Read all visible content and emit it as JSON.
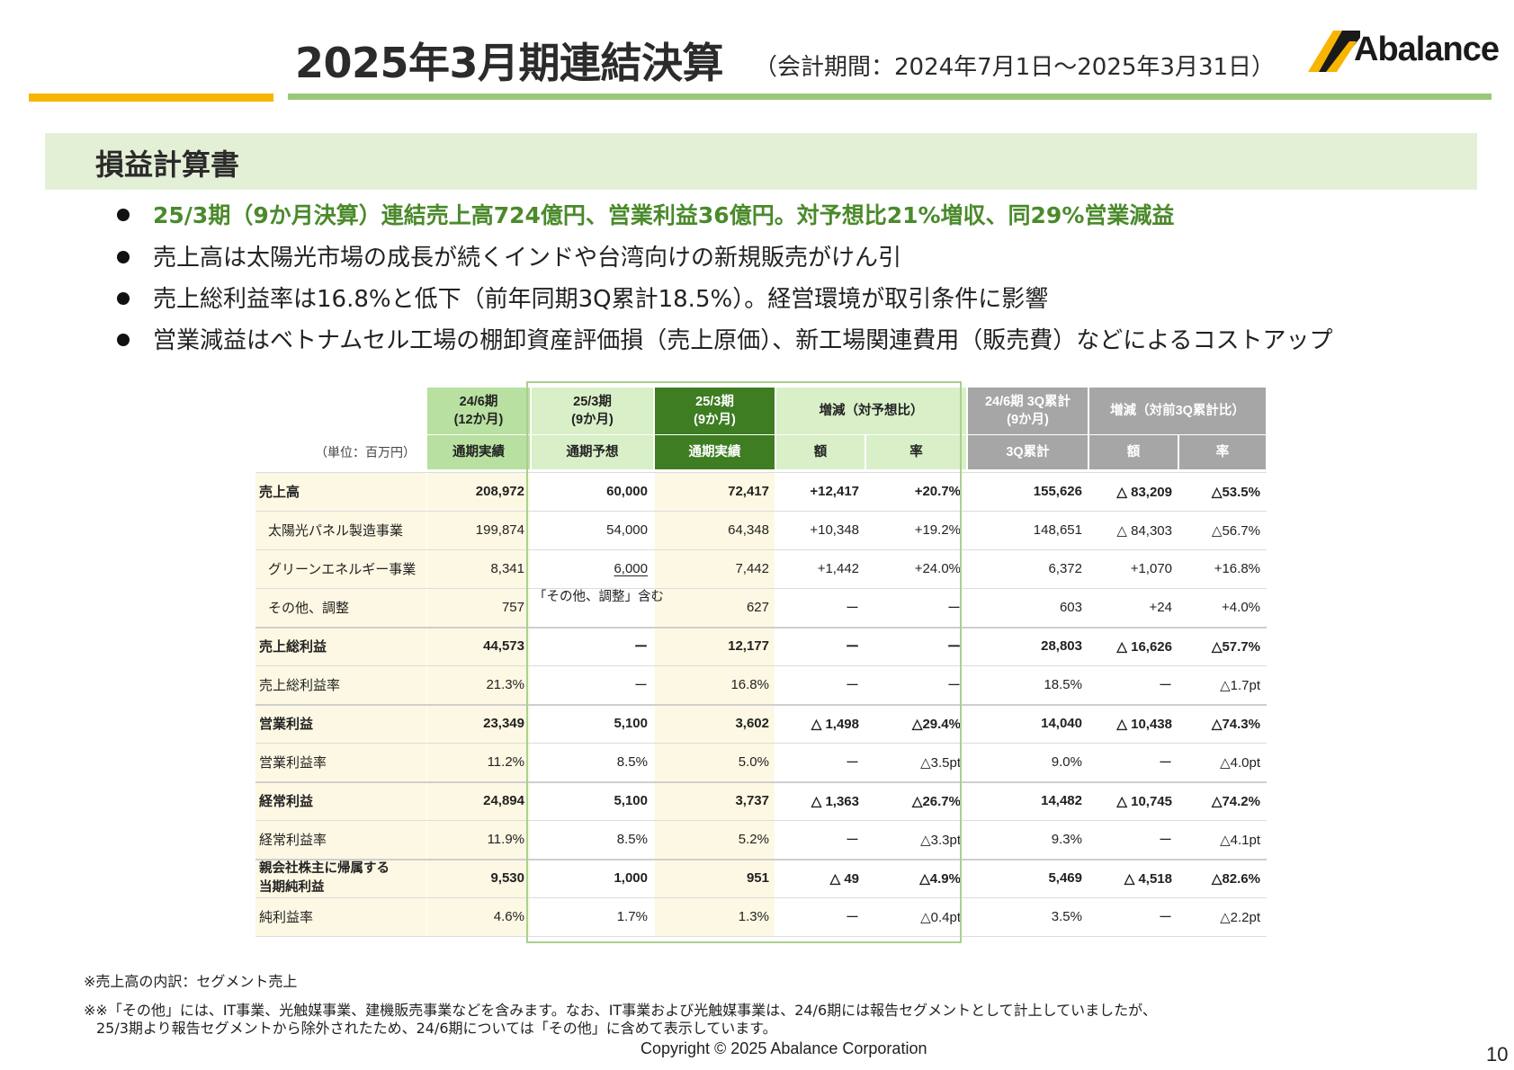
{
  "header": {
    "title": "2025年3月期連結決算",
    "period": "（会計期間：2024年7月1日～2025年3月31日）",
    "logo_text": "Abalance"
  },
  "section": {
    "title": "損益計算書"
  },
  "bullets": [
    "25/3期（9か月決算）連結売上高724億円、営業利益36億円。対予想比21%増収、同29%営業減益",
    "売上高は太陽光市場の成長が続くインドや台湾向けの新規販売がけん引",
    "売上総利益率は16.8%と低下（前年同期3Q累計18.5%）。経営環境が取引条件に影響",
    "営業減益はベトナムセル工場の棚卸資産評価損（売上原価）、新工場関連費用（販売費）などによるコストアップ"
  ],
  "table": {
    "unit_label": "（単位：百万円）",
    "col_headers": [
      {
        "top": "24/6期\n(12か月)",
        "sub": "通期実績"
      },
      {
        "top": "25/3期\n(9か月)",
        "sub": "通期予想"
      },
      {
        "top": "25/3期\n(9か月)",
        "sub": "通期実績"
      },
      {
        "top": "増減（対予想比）",
        "sub": "額"
      },
      {
        "top": "",
        "sub": "率"
      },
      {
        "top": "24/6期 3Q累計\n(9か月)",
        "sub": "3Q累計"
      },
      {
        "top": "増減（対前3Q累計比）",
        "sub": "額"
      },
      {
        "top": "",
        "sub": "率"
      }
    ],
    "forecast_note": "「その他、調整」含む",
    "rows": [
      {
        "label": "売上高",
        "bold": true,
        "indent": false,
        "values": [
          "208,972",
          "60,000",
          "72,417",
          "+12,417",
          "+20.7%",
          "155,626",
          "△ 83,209",
          "△53.5%"
        ]
      },
      {
        "label": "太陽光パネル製造事業",
        "bold": false,
        "indent": true,
        "values": [
          "199,874",
          "54,000",
          "64,348",
          "+10,348",
          "+19.2%",
          "148,651",
          "△ 84,303",
          "△56.7%"
        ]
      },
      {
        "label": "グリーンエネルギー事業",
        "bold": false,
        "indent": true,
        "values": [
          "8,341",
          "6,000",
          "7,442",
          "+1,442",
          "+24.0%",
          "6,372",
          "+1,070",
          "+16.8%"
        ]
      },
      {
        "label": "その他、調整",
        "bold": false,
        "indent": true,
        "values": [
          "757",
          "",
          "627",
          "ー",
          "ー",
          "603",
          "+24",
          "+4.0%"
        ]
      },
      {
        "label": "売上総利益",
        "bold": true,
        "indent": false,
        "values": [
          "44,573",
          "ー",
          "12,177",
          "ー",
          "ー",
          "28,803",
          "△ 16,626",
          "△57.7%"
        ]
      },
      {
        "label": "売上総利益率",
        "bold": false,
        "indent": false,
        "values": [
          "21.3%",
          "ー",
          "16.8%",
          "ー",
          "ー",
          "18.5%",
          "ー",
          "△1.7pt"
        ]
      },
      {
        "label": "営業利益",
        "bold": true,
        "indent": false,
        "values": [
          "23,349",
          "5,100",
          "3,602",
          "△ 1,498",
          "△29.4%",
          "14,040",
          "△ 10,438",
          "△74.3%"
        ]
      },
      {
        "label": "営業利益率",
        "bold": false,
        "indent": false,
        "values": [
          "11.2%",
          "8.5%",
          "5.0%",
          "ー",
          "△3.5pt",
          "9.0%",
          "ー",
          "△4.0pt"
        ]
      },
      {
        "label": "経常利益",
        "bold": true,
        "indent": false,
        "values": [
          "24,894",
          "5,100",
          "3,737",
          "△ 1,363",
          "△26.7%",
          "14,482",
          "△ 10,745",
          "△74.2%"
        ]
      },
      {
        "label": "経常利益率",
        "bold": false,
        "indent": false,
        "values": [
          "11.9%",
          "8.5%",
          "5.2%",
          "ー",
          "△3.3pt",
          "9.3%",
          "ー",
          "△4.1pt"
        ]
      },
      {
        "label": "親会社株主に帰属する\n当期純利益",
        "bold": true,
        "indent": false,
        "values": [
          "9,530",
          "1,000",
          "951",
          "△ 49",
          "△4.9%",
          "5,469",
          "△ 4,518",
          "△82.6%"
        ]
      },
      {
        "label": "純利益率",
        "bold": false,
        "indent": false,
        "values": [
          "4.6%",
          "1.7%",
          "1.3%",
          "ー",
          "△0.4pt",
          "3.5%",
          "ー",
          "△2.2pt"
        ]
      }
    ]
  },
  "notes": [
    "※売上高の内訳：セグメント売上",
    "※※「その他」には、IT事業、光触媒事業、建機販売事業などを含みます。なお、IT事業および光触媒事業は、24/6期には報告セグメントとして計上していましたが、",
    "25/3期より報告セグメントから除外されたため、24/6期については「その他」に含めて表示しています。"
  ],
  "footer": {
    "copyright": "Copyright © 2025 Abalance Corporation",
    "page_number": "10"
  },
  "colors": {
    "accent_yellow": "#f7b500",
    "accent_green": "#9cc77a",
    "section_bg": "#e3f0d6",
    "bullet_highlight": "#4a8a2b",
    "col_prev_header": "#b8e0a0",
    "col_actual_header": "#3e7d22",
    "col_light_header": "#d8efc8",
    "col_gray_header": "#a6a6a6",
    "label_bg": "#fdf8e3"
  }
}
